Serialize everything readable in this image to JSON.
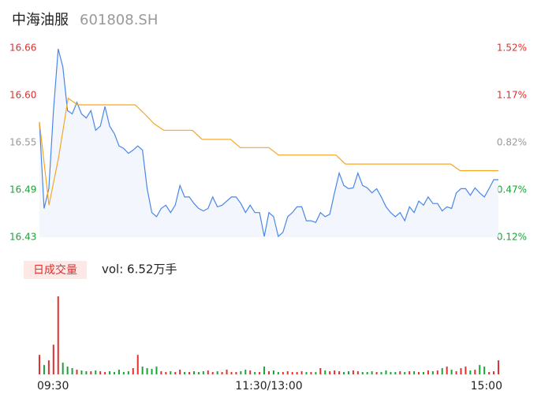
{
  "chart_data": {
    "type": "line",
    "title": "中海油服",
    "subtitle": "601808.SH",
    "xlim": [
      0,
      240
    ],
    "xticks": [
      {
        "value": 0,
        "label": "09:30"
      },
      {
        "value": 120,
        "label": "11:30/13:00"
      },
      {
        "value": 240,
        "label": "15:00"
      }
    ],
    "ylim": [
      16.43,
      16.66
    ],
    "yticks": [
      {
        "value": 16.66,
        "label": "16.66"
      },
      {
        "value": 16.6025,
        "label": "16.60"
      },
      {
        "value": 16.545,
        "label": "16.55"
      },
      {
        "value": 16.4875,
        "label": "16.49"
      },
      {
        "value": 16.43,
        "label": "16.43"
      }
    ],
    "y2lim": [
      0.12,
      1.52
    ],
    "y2ticks": [
      {
        "value": 1.52,
        "label": "1.52%"
      },
      {
        "value": 1.17,
        "label": "1.17%"
      },
      {
        "value": 0.82,
        "label": "0.82%"
      },
      {
        "value": 0.47,
        "label": "0.47%"
      },
      {
        "value": 0.12,
        "label": "0.12%"
      }
    ],
    "ytick_colors": [
      "#e0302f",
      "#e0302f",
      "#999999",
      "#1aa33a",
      "#1aa33a"
    ],
    "up_color": "#e0302f",
    "down_color": "#1aa33a",
    "series": [
      {
        "color": "#4a86e8",
        "values": [
          16.57,
          16.465,
          16.489,
          16.584,
          16.659,
          16.637,
          16.584,
          16.58,
          16.594,
          16.58,
          16.575,
          16.584,
          16.56,
          16.565,
          16.589,
          16.565,
          16.556,
          16.541,
          16.538,
          16.532,
          16.536,
          16.541,
          16.536,
          16.489,
          16.46,
          16.455,
          16.465,
          16.469,
          16.46,
          16.469,
          16.493,
          16.479,
          16.479,
          16.471,
          16.465,
          16.462,
          16.465,
          16.479,
          16.467,
          16.469,
          16.474,
          16.479,
          16.479,
          16.471,
          16.46,
          16.469,
          16.46,
          16.46,
          16.431,
          16.46,
          16.455,
          16.431,
          16.436,
          16.455,
          16.46,
          16.467,
          16.467,
          16.45,
          16.45,
          16.448,
          16.46,
          16.455,
          16.458,
          16.484,
          16.508,
          16.493,
          16.489,
          16.49,
          16.508,
          16.493,
          16.49,
          16.484,
          16.489,
          16.479,
          16.467,
          16.46,
          16.455,
          16.46,
          16.45,
          16.467,
          16.46,
          16.474,
          16.469,
          16.479,
          16.471,
          16.471,
          16.462,
          16.467,
          16.465,
          16.484,
          16.489,
          16.489,
          16.481,
          16.49,
          16.484,
          16.479,
          16.489,
          16.5,
          16.5
        ]
      },
      {
        "color": "#f5a623",
        "values": [
          16.57,
          16.469,
          16.527,
          16.599,
          16.591,
          16.591,
          16.591,
          16.591,
          16.591,
          16.591,
          16.591,
          16.58,
          16.568,
          16.56,
          16.56,
          16.56,
          16.56,
          16.549,
          16.549,
          16.549,
          16.549,
          16.539,
          16.539,
          16.539,
          16.539,
          16.53,
          16.53,
          16.53,
          16.53,
          16.53,
          16.53,
          16.53,
          16.519,
          16.519,
          16.519,
          16.519,
          16.519,
          16.519,
          16.519,
          16.519,
          16.519,
          16.519,
          16.519,
          16.519,
          16.511,
          16.511,
          16.511,
          16.511,
          16.511
        ]
      }
    ],
    "volume": {
      "label": "日成交量",
      "summary": "vol: 6.52万手",
      "values": [
        1000,
        480,
        720,
        1520,
        4000,
        600,
        400,
        320,
        240,
        200,
        160,
        160,
        200,
        160,
        120,
        160,
        120,
        240,
        120,
        160,
        320,
        1000,
        400,
        320,
        280,
        400,
        160,
        120,
        160,
        120,
        240,
        120,
        120,
        160,
        120,
        160,
        200,
        120,
        160,
        120,
        240,
        120,
        120,
        160,
        240,
        200,
        120,
        120,
        400,
        160,
        200,
        120,
        120,
        160,
        120,
        120,
        160,
        120,
        120,
        120,
        320,
        200,
        160,
        200,
        160,
        120,
        160,
        200,
        160,
        120,
        120,
        160,
        120,
        120,
        200,
        120,
        120,
        160,
        120,
        160,
        160,
        120,
        120,
        200,
        160,
        200,
        320,
        400,
        240,
        160,
        320,
        400,
        200,
        240,
        480,
        400,
        120,
        160,
        720
      ]
    }
  }
}
